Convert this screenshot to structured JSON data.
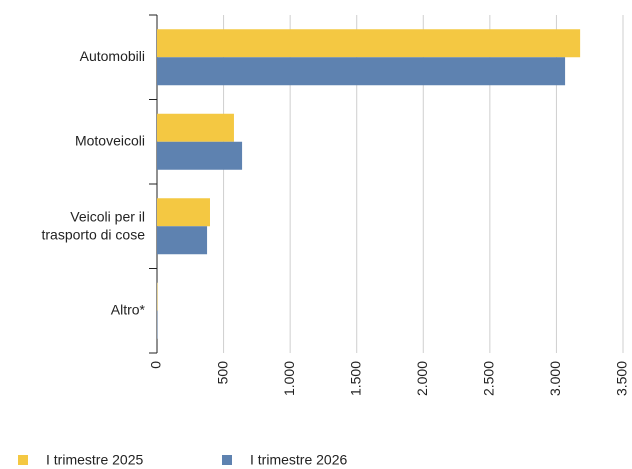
{
  "chart_data": {
    "type": "hbar",
    "categories": [
      "Automobili",
      "Motoveicoli",
      "Veicoli per il\ntrasporto di cose",
      "Altro*"
    ],
    "series": [
      {
        "name": "I trimestre 2025",
        "color": "#f4c842",
        "values": [
          3178,
          578,
          398,
          3
        ]
      },
      {
        "name": "I trimestre 2026",
        "color": "#5e82b0",
        "values": [
          3065,
          639,
          376,
          3
        ]
      }
    ],
    "xlim": [
      0,
      3500
    ],
    "xticks": [
      0,
      500,
      {
        "value": 1000,
        "label": "1.000"
      },
      {
        "value": 1500,
        "label": "1.500"
      },
      {
        "value": 2000,
        "label": "2.000"
      },
      {
        "value": 2500,
        "label": "2.500"
      },
      {
        "value": 3000,
        "label": "3.000"
      },
      {
        "value": 3500,
        "label": "3.500"
      }
    ],
    "grid": true,
    "legend": "bottom"
  }
}
